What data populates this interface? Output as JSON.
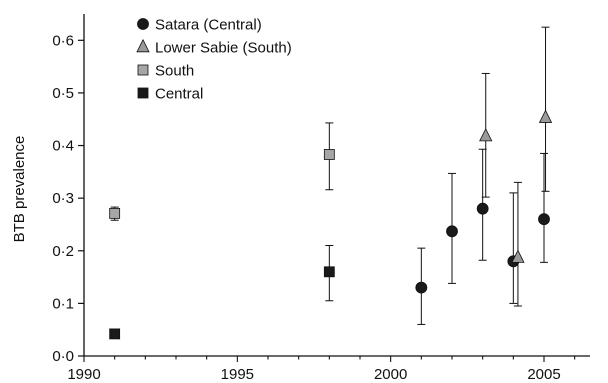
{
  "chart_data": {
    "type": "scatter",
    "title": "",
    "xlabel": "",
    "ylabel": "BTB prevalence",
    "xlim": [
      1990,
      2006.5
    ],
    "ylim": [
      0,
      0.65
    ],
    "x_ticks": [
      1990,
      1995,
      2000,
      2005
    ],
    "x_tick_labels": [
      "1990",
      "1995",
      "2000",
      "2005"
    ],
    "y_ticks": [
      0,
      0.1,
      0.2,
      0.3,
      0.4,
      0.5,
      0.6
    ],
    "y_tick_labels": [
      "0·0",
      "0·1",
      "0·2",
      "0·3",
      "0·4",
      "0·5",
      "0·6"
    ],
    "grid": false,
    "legend_position": "top-left",
    "series": [
      {
        "name": "Satara (Central)",
        "marker": "circle",
        "color": "#1a1a1a",
        "points": [
          {
            "x": 2001,
            "y": 0.13,
            "lo": 0.06,
            "hi": 0.205
          },
          {
            "x": 2002,
            "y": 0.237,
            "lo": 0.138,
            "hi": 0.347
          },
          {
            "x": 2003,
            "y": 0.28,
            "lo": 0.182,
            "hi": 0.393
          },
          {
            "x": 2004,
            "y": 0.18,
            "lo": 0.1,
            "hi": 0.31
          },
          {
            "x": 2005,
            "y": 0.26,
            "lo": 0.178,
            "hi": 0.385
          }
        ]
      },
      {
        "name": "Lower Sabie (South)",
        "marker": "triangle",
        "color": "#9a9a9a",
        "points": [
          {
            "x": 2003.1,
            "y": 0.418,
            "lo": 0.302,
            "hi": 0.537
          },
          {
            "x": 2004.15,
            "y": 0.187,
            "lo": 0.095,
            "hi": 0.33
          },
          {
            "x": 2005.05,
            "y": 0.453,
            "lo": 0.313,
            "hi": 0.625
          }
        ]
      },
      {
        "name": "South",
        "marker": "square",
        "color": "#a6a6a6",
        "points": [
          {
            "x": 1991,
            "y": 0.271,
            "lo": 0.258,
            "hi": 0.283
          },
          {
            "x": 1998,
            "y": 0.383,
            "lo": 0.316,
            "hi": 0.443
          }
        ]
      },
      {
        "name": "Central",
        "marker": "square",
        "color": "#1a1a1a",
        "points": [
          {
            "x": 1991,
            "y": 0.042,
            "lo": 0.042,
            "hi": 0.042
          },
          {
            "x": 1998,
            "y": 0.16,
            "lo": 0.105,
            "hi": 0.21
          }
        ]
      }
    ]
  }
}
